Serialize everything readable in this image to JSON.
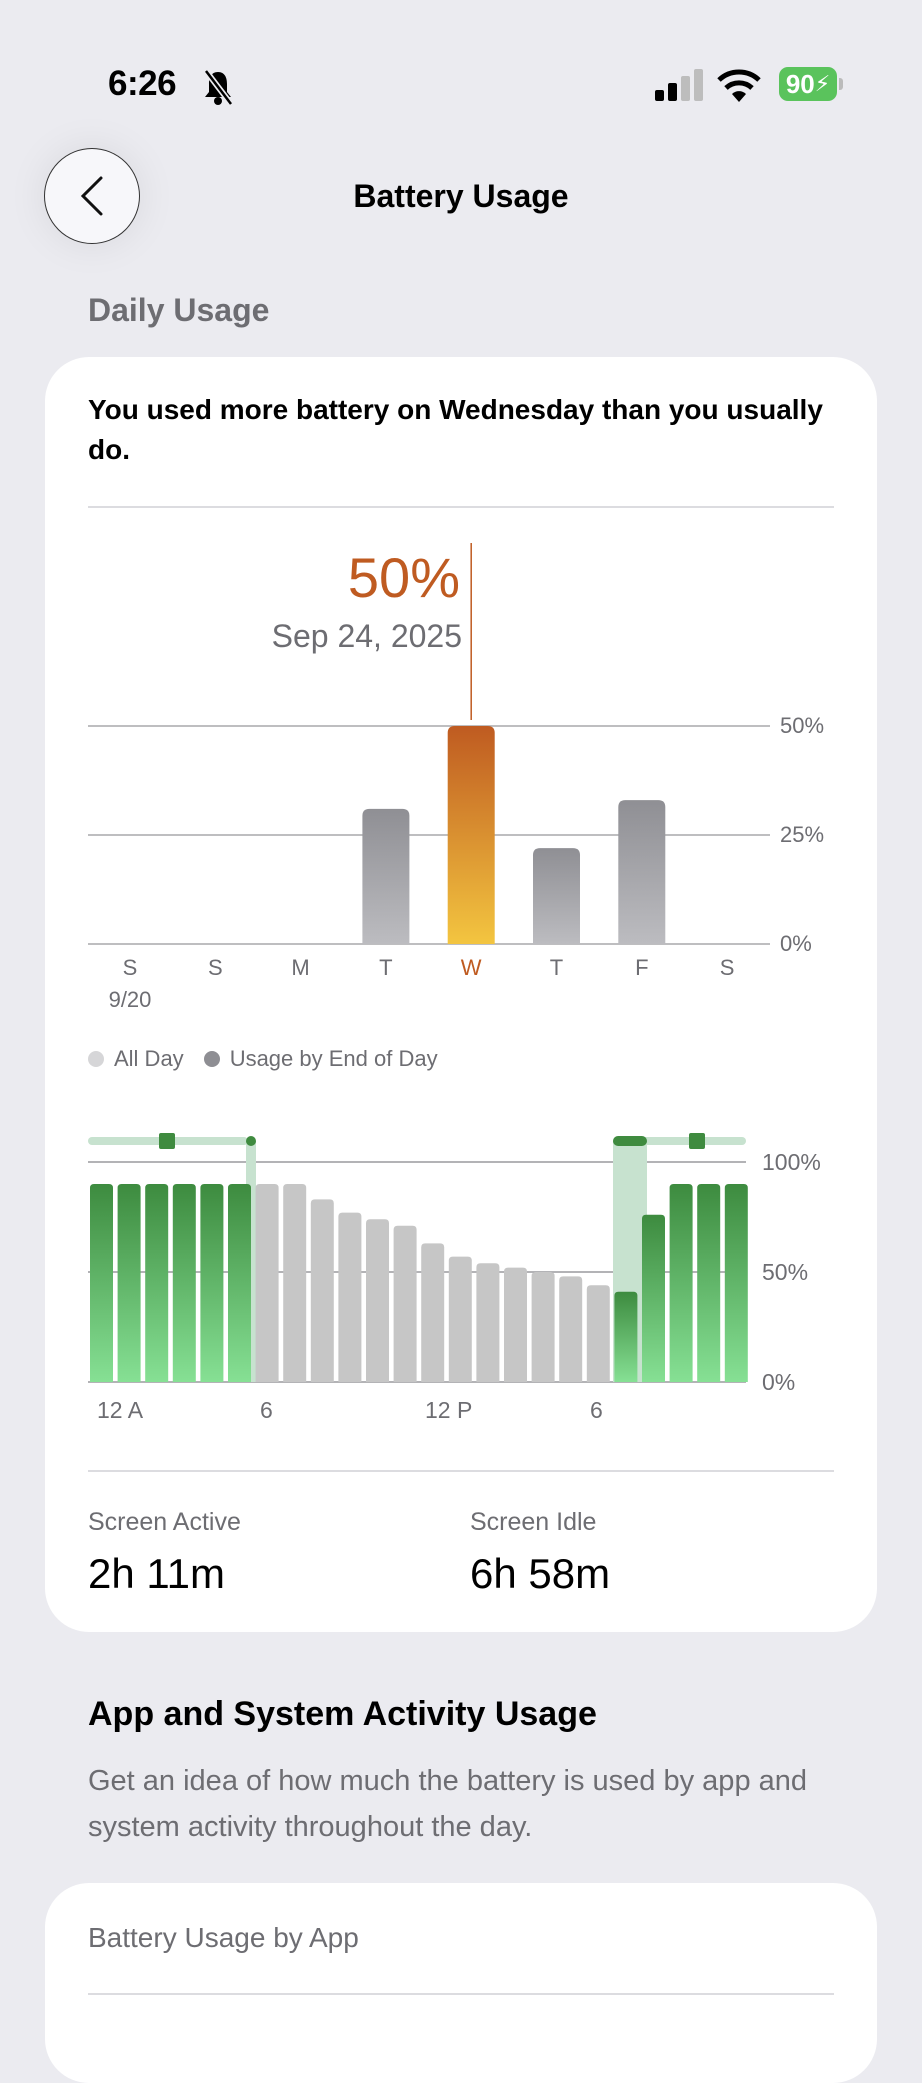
{
  "status_bar": {
    "time": "6:26",
    "battery_level": "90",
    "icons": [
      "bell-slash-icon",
      "cellular-signal-icon",
      "wifi-icon",
      "battery-charging-icon"
    ],
    "battery_color": "#5ac35c"
  },
  "nav": {
    "title": "Battery Usage",
    "back_icon": "chevron-left-icon"
  },
  "daily": {
    "section_label": "Daily Usage",
    "headline": "You used more battery on Wednesday than you usually do.",
    "selected_value": "50%",
    "selected_date": "Sep 24, 2025",
    "screen_active_label": "Screen Active",
    "screen_active_value": "2h 11m",
    "screen_idle_label": "Screen Idle",
    "screen_idle_value": "6h 58m"
  },
  "chart_data": [
    {
      "type": "bar",
      "categories": [
        "S",
        "S",
        "M",
        "T",
        "W",
        "T",
        "F",
        "S"
      ],
      "sublabels": [
        "9/20",
        "",
        "",
        "",
        "",
        "",
        "",
        ""
      ],
      "values": [
        0,
        0,
        0,
        31,
        50,
        22,
        33,
        0
      ],
      "selected_index": 4,
      "ylim": [
        0,
        50
      ],
      "yticks": [
        "50%",
        "25%",
        "0%"
      ],
      "grid": true,
      "colors": {
        "bar": "#9a9a9f",
        "selected_top": "#bf5b21",
        "selected_bottom": "#f3c540"
      }
    },
    {
      "type": "bar",
      "xticks": [
        "12 A",
        "6",
        "12 P",
        "6"
      ],
      "yticks": [
        "100%",
        "50%",
        "0%"
      ],
      "ylim": [
        0,
        100
      ],
      "grid": true,
      "legend": [
        "All Day",
        "Usage by End of Day"
      ],
      "legend_placement": "top-left",
      "values": [
        90,
        90,
        90,
        90,
        90,
        90,
        90,
        90,
        83,
        77,
        74,
        71,
        63,
        57,
        54,
        52,
        50,
        48,
        44,
        41,
        76,
        90,
        90,
        90
      ],
      "charging": [
        true,
        true,
        true,
        true,
        true,
        true,
        false,
        false,
        false,
        false,
        false,
        false,
        false,
        false,
        false,
        false,
        false,
        false,
        false,
        true,
        true,
        true,
        true,
        true
      ],
      "colors": {
        "charging": "#3f8b3f",
        "not_charging": "#c6c6c6",
        "charging_band": "#c7e2cf"
      }
    }
  ],
  "activity": {
    "title": "App and System Activity Usage",
    "description": "Get an idea of how much the battery is used by app and system activity throughout the day.",
    "by_app_label": "Battery Usage by App"
  }
}
